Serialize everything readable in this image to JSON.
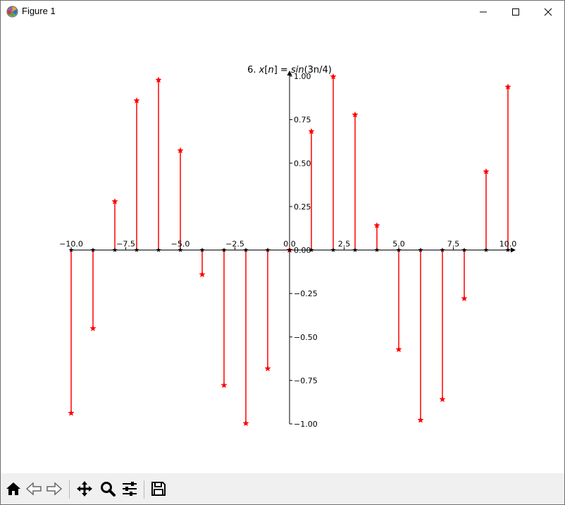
{
  "window": {
    "title": "Figure 1",
    "icon": "matplotlib-figure-icon"
  },
  "toolbar": {
    "buttons": [
      {
        "name": "home-button",
        "icon": "home-icon"
      },
      {
        "name": "back-button",
        "icon": "arrow-left-icon"
      },
      {
        "name": "forward-button",
        "icon": "arrow-right-icon"
      },
      {
        "name": "pan-button",
        "icon": "move-icon"
      },
      {
        "name": "zoom-button",
        "icon": "magnifier-icon"
      },
      {
        "name": "configure-subplots-button",
        "icon": "sliders-icon"
      },
      {
        "name": "save-button",
        "icon": "floppy-disk-icon"
      }
    ]
  },
  "chart_data": {
    "type": "stem",
    "title": "6. x[n] = sin(3n/4)",
    "title_parts": {
      "prefix": "6. ",
      "lhs": "x",
      "lbrack": "[",
      "n": "n",
      "rbrack": "]",
      "eq": " = ",
      "fn": "sin",
      "arg": "(3n/4)"
    },
    "x": [
      -10,
      -9,
      -8,
      -7,
      -6,
      -5,
      -4,
      -3,
      -2,
      -1,
      0,
      1,
      2,
      3,
      4,
      5,
      6,
      7,
      8,
      9,
      10
    ],
    "values": [
      -0.938,
      -0.451,
      0.279,
      0.859,
      0.978,
      0.572,
      -0.141,
      -0.778,
      -0.997,
      -0.682,
      0.0,
      0.682,
      0.997,
      0.778,
      0.141,
      -0.572,
      -0.978,
      -0.859,
      -0.279,
      0.451,
      0.938
    ],
    "xlim": [
      -10.5,
      10.5
    ],
    "ylim": [
      -1.0,
      1.0
    ],
    "xticks": [
      -10.0,
      -7.5,
      -5.0,
      -2.5,
      0.0,
      2.5,
      5.0,
      7.5,
      10.0
    ],
    "xtick_labels": [
      "−10.0",
      "−7.5",
      "−5.0",
      "−2.5",
      "0.0",
      "2.5",
      "5.0",
      "7.5",
      "10.0"
    ],
    "yticks": [
      1.0,
      0.75,
      0.5,
      0.25,
      0.0,
      -0.25,
      -0.5,
      -0.75,
      -1.0
    ],
    "ytick_labels": [
      "1.00",
      "0.75",
      "0.50",
      "0.25",
      "0.00",
      "−0.25",
      "−0.50",
      "−0.75",
      "−1.00"
    ],
    "marker": "star",
    "color": "#ff0000",
    "axis_color": "#000000",
    "spines": "centered-at-origin-with-arrows",
    "grid": false
  }
}
